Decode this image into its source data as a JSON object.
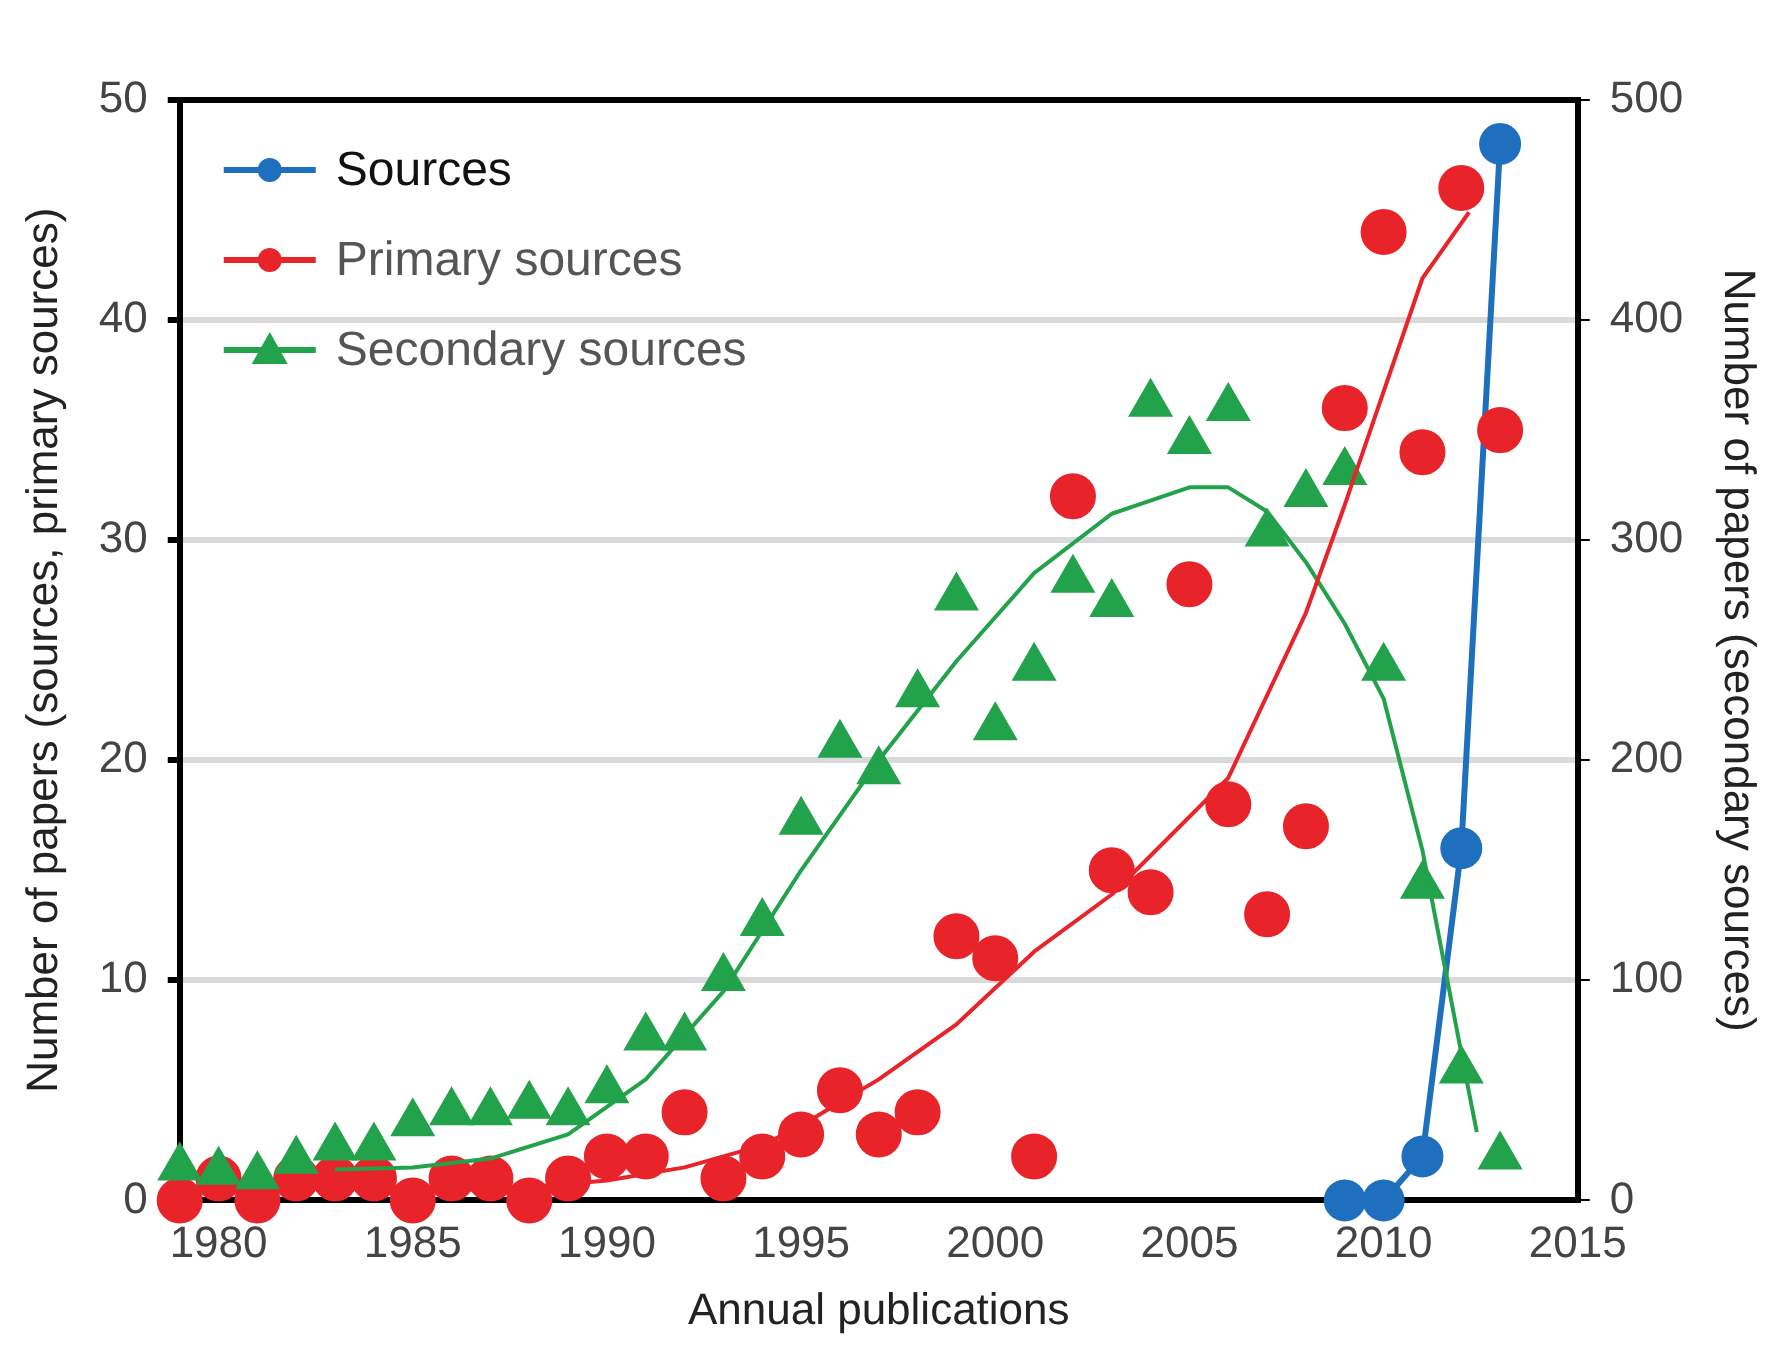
{
  "chart_data": {
    "type": "scatter",
    "xlabel": "Annual publications",
    "ylabel": "Number of papers (sources, primary sources)",
    "y2label": "Number of papers (secondary sources)",
    "xlim": [
      1979,
      2015
    ],
    "xticks": [
      1980,
      1985,
      1990,
      1995,
      2000,
      2005,
      2010,
      2015
    ],
    "ylim": [
      0,
      50
    ],
    "yticks": [
      0,
      10,
      20,
      30,
      40,
      50
    ],
    "y2lim": [
      0,
      500
    ],
    "y2ticks": [
      0,
      100,
      200,
      300,
      400,
      500
    ],
    "grid": "y",
    "legend": "top left",
    "series": [
      {
        "name": "Sources",
        "type": "line",
        "marker": "circle",
        "color": "#1f6fbf",
        "x": [
          2009,
          2010,
          2011,
          2012,
          2013
        ],
        "values": [
          0,
          0,
          2,
          16,
          48
        ]
      },
      {
        "name": "Primary sources",
        "type": "scatter",
        "marker": "circle",
        "color": "#e8232a",
        "x": [
          1979,
          1980,
          1981,
          1982,
          1983,
          1984,
          1985,
          1986,
          1987,
          1988,
          1989,
          1990,
          1991,
          1992,
          1993,
          1994,
          1995,
          1996,
          1997,
          1998,
          1999,
          2000,
          2001,
          2002,
          2003,
          2004,
          2005,
          2006,
          2007,
          2008,
          2009,
          2010,
          2011,
          2012,
          2013
        ],
        "values": [
          0,
          1,
          0,
          1,
          1,
          1,
          0,
          1,
          1,
          0,
          1,
          2,
          2,
          4,
          1,
          2,
          3,
          5,
          3,
          4,
          12,
          11,
          2,
          32,
          15,
          14,
          28,
          18,
          13,
          17,
          36,
          44,
          34,
          46,
          35
        ]
      },
      {
        "name": "Secondary sources",
        "type": "scatter",
        "marker": "triangle",
        "axis": "y2",
        "color": "#22a24a",
        "x": [
          1979,
          1980,
          1981,
          1982,
          1983,
          1984,
          1985,
          1986,
          1987,
          1988,
          1989,
          1990,
          1991,
          1992,
          1993,
          1994,
          1995,
          1996,
          1997,
          1998,
          1999,
          2000,
          2001,
          2002,
          2003,
          2004,
          2005,
          2006,
          2007,
          2008,
          2009,
          2010,
          2011,
          2012,
          2013
        ],
        "values": [
          15,
          13,
          11,
          18,
          24,
          24,
          35,
          40,
          40,
          43,
          40,
          50,
          74,
          74,
          101,
          126,
          172,
          207,
          195,
          230,
          274,
          215,
          242,
          282,
          271,
          362,
          345,
          360,
          303,
          321,
          331,
          242,
          143,
          59,
          20
        ]
      },
      {
        "type": "line",
        "marker": "none",
        "color": "#e8232a",
        "x": [
          1984,
          1988,
          1990,
          1992,
          1994,
          1995,
          1997,
          1999,
          2001,
          2003,
          2006,
          2008,
          2009,
          2011,
          2012.2
        ],
        "values": [
          0.3,
          0.6,
          0.9,
          1.5,
          2.5,
          3.4,
          5.5,
          8,
          11.3,
          13.9,
          19.2,
          26.7,
          31.6,
          41.9,
          44.9
        ]
      },
      {
        "type": "line",
        "marker": "none",
        "axis": "y2",
        "color": "#22a24a",
        "x": [
          1983,
          1985,
          1987,
          1989,
          1991,
          1993,
          1995,
          1997,
          1999,
          2001,
          2003,
          2005,
          2006,
          2007,
          2008,
          2009,
          2010,
          2011,
          2012,
          2012.4
        ],
        "values": [
          14,
          15,
          19,
          30,
          55,
          95,
          150,
          200,
          245,
          285,
          312,
          324,
          324,
          313,
          290,
          262,
          228,
          159,
          67,
          31
        ]
      }
    ]
  }
}
